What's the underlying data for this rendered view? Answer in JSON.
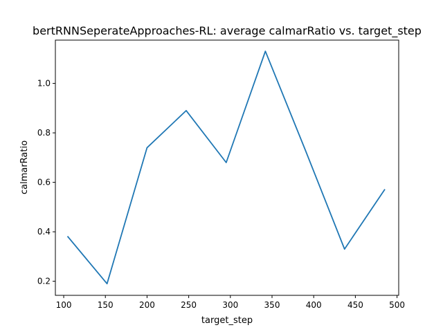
{
  "chart_data": {
    "type": "line",
    "title": "bertRNNSeperateApproaches-RL: average calmarRatio vs. target_step",
    "xlabel": "target_step",
    "ylabel": "calmarRatio",
    "x": [
      105,
      152,
      200,
      247,
      295,
      342,
      390,
      437,
      485
    ],
    "series": [
      {
        "values": [
          0.38,
          0.19,
          0.74,
          0.89,
          0.68,
          1.13,
          0.73,
          0.33,
          0.57
        ]
      }
    ],
    "xlim": [
      90,
      502
    ],
    "ylim": [
      0.143,
      1.175
    ],
    "xticks": [
      100,
      150,
      200,
      250,
      300,
      350,
      400,
      450,
      500
    ],
    "yticks": [
      0.2,
      0.4,
      0.6,
      0.8,
      1.0
    ],
    "ytick_labels": [
      "0.2",
      "0.4",
      "0.6",
      "0.8",
      "1.0"
    ],
    "grid": false,
    "line_color": "#1f77b4"
  }
}
